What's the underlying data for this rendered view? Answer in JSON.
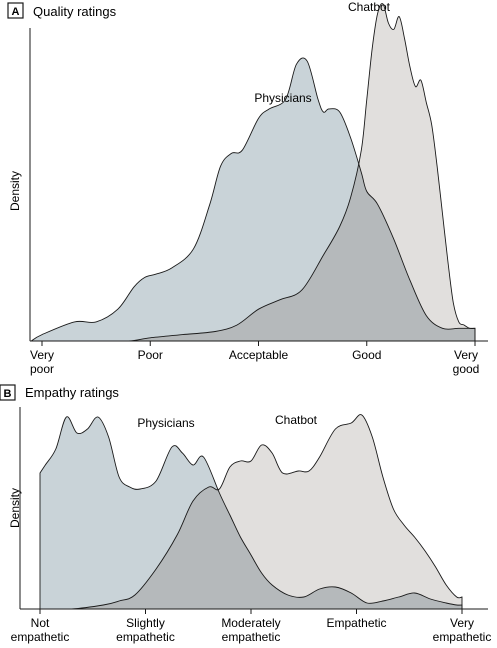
{
  "colors": {
    "physicians_fill": "#c9d3d8",
    "chatbot_fill": "#e1dfdd",
    "overlap_fill": "#b5b9bb",
    "outline": "#1a1a1a",
    "panel_box": "#1a1a1a"
  },
  "chart_data": [
    {
      "type": "area",
      "panel_letter": "A",
      "title": "Quality ratings",
      "ylabel": "Density",
      "xlabel": "",
      "categories": [
        "Very poor",
        "Poor",
        "Acceptable",
        "Good",
        "Very good"
      ],
      "tick_lines": [
        [
          "Very",
          "poor"
        ],
        [
          "Poor"
        ],
        [
          "Acceptable"
        ],
        [
          "Good"
        ],
        [
          "Very",
          "good"
        ]
      ],
      "xlim": [
        1,
        5
      ],
      "ylim": [
        0,
        1
      ],
      "series": [
        {
          "name": "Physicians",
          "x": [
            0.9,
            1.0,
            1.3,
            1.5,
            1.7,
            1.85,
            1.95,
            2.05,
            2.2,
            2.4,
            2.55,
            2.65,
            2.75,
            2.85,
            3.0,
            3.1,
            3.25,
            3.35,
            3.45,
            3.55,
            3.6,
            3.65,
            3.75,
            3.85,
            3.95,
            4.0,
            4.1,
            4.25,
            4.4,
            4.55,
            4.7,
            4.85,
            5.0
          ],
          "values": [
            0.0,
            0.02,
            0.06,
            0.06,
            0.1,
            0.17,
            0.2,
            0.21,
            0.23,
            0.29,
            0.43,
            0.55,
            0.59,
            0.6,
            0.7,
            0.73,
            0.76,
            0.87,
            0.88,
            0.76,
            0.72,
            0.73,
            0.72,
            0.64,
            0.53,
            0.47,
            0.43,
            0.32,
            0.19,
            0.08,
            0.04,
            0.04,
            0.04
          ]
        },
        {
          "name": "Chatbot",
          "x": [
            1.0,
            1.5,
            1.8,
            2.0,
            2.3,
            2.6,
            2.8,
            3.0,
            3.2,
            3.4,
            3.6,
            3.75,
            3.85,
            3.95,
            4.0,
            4.05,
            4.1,
            4.15,
            4.2,
            4.25,
            4.3,
            4.35,
            4.4,
            4.45,
            4.5,
            4.55,
            4.6,
            4.65,
            4.7,
            4.75,
            4.8,
            4.85,
            4.9,
            4.95,
            5.0
          ],
          "values": [
            0.0,
            0.0,
            0.0,
            0.01,
            0.02,
            0.03,
            0.05,
            0.1,
            0.13,
            0.16,
            0.27,
            0.36,
            0.45,
            0.6,
            0.76,
            0.92,
            1.03,
            1.06,
            1.0,
            0.98,
            1.02,
            0.95,
            0.86,
            0.8,
            0.82,
            0.75,
            0.68,
            0.55,
            0.4,
            0.25,
            0.12,
            0.06,
            0.05,
            0.04,
            0.04
          ]
        }
      ]
    },
    {
      "type": "area",
      "panel_letter": "B",
      "title": "Empathy ratings",
      "ylabel": "Density",
      "xlabel": "",
      "categories": [
        "Not empathetic",
        "Slightly empathetic",
        "Moderately empathetic",
        "Empathetic",
        "Very empathetic"
      ],
      "tick_lines": [
        [
          "Not",
          "empathetic"
        ],
        [
          "Slightly",
          "empathetic"
        ],
        [
          "Moderately",
          "empathetic"
        ],
        [
          "Empathetic"
        ],
        [
          "Very",
          "empathetic"
        ]
      ],
      "xlim": [
        1,
        5
      ],
      "ylim": [
        0,
        1
      ],
      "series": [
        {
          "name": "Physicians",
          "x": [
            1.0,
            1.05,
            1.15,
            1.25,
            1.35,
            1.45,
            1.55,
            1.65,
            1.75,
            1.85,
            1.95,
            2.1,
            2.25,
            2.35,
            2.45,
            2.55,
            2.7,
            2.8,
            2.9,
            3.0,
            3.1,
            3.2,
            3.35,
            3.5,
            3.65,
            3.8,
            3.95,
            4.1,
            4.25,
            4.4,
            4.55,
            4.7,
            4.85,
            4.95,
            5.0
          ],
          "values": [
            0.68,
            0.72,
            0.8,
            0.96,
            0.88,
            0.9,
            0.96,
            0.86,
            0.66,
            0.61,
            0.6,
            0.64,
            0.81,
            0.78,
            0.72,
            0.76,
            0.58,
            0.47,
            0.36,
            0.27,
            0.18,
            0.12,
            0.07,
            0.06,
            0.1,
            0.11,
            0.08,
            0.03,
            0.04,
            0.06,
            0.08,
            0.05,
            0.03,
            0.02,
            0.02
          ]
        },
        {
          "name": "Chatbot",
          "x": [
            1.0,
            1.3,
            1.6,
            1.75,
            1.9,
            2.1,
            2.3,
            2.45,
            2.6,
            2.7,
            2.8,
            2.9,
            3.0,
            3.1,
            3.2,
            3.3,
            3.45,
            3.55,
            3.65,
            3.8,
            3.95,
            4.05,
            4.15,
            4.25,
            4.35,
            4.45,
            4.55,
            4.65,
            4.75,
            4.85,
            4.95,
            5.0
          ],
          "values": [
            0.0,
            0.0,
            0.02,
            0.04,
            0.07,
            0.2,
            0.37,
            0.54,
            0.61,
            0.6,
            0.71,
            0.74,
            0.74,
            0.82,
            0.78,
            0.68,
            0.69,
            0.69,
            0.76,
            0.9,
            0.93,
            0.97,
            0.86,
            0.66,
            0.5,
            0.42,
            0.36,
            0.29,
            0.21,
            0.12,
            0.06,
            0.06
          ]
        }
      ]
    }
  ]
}
